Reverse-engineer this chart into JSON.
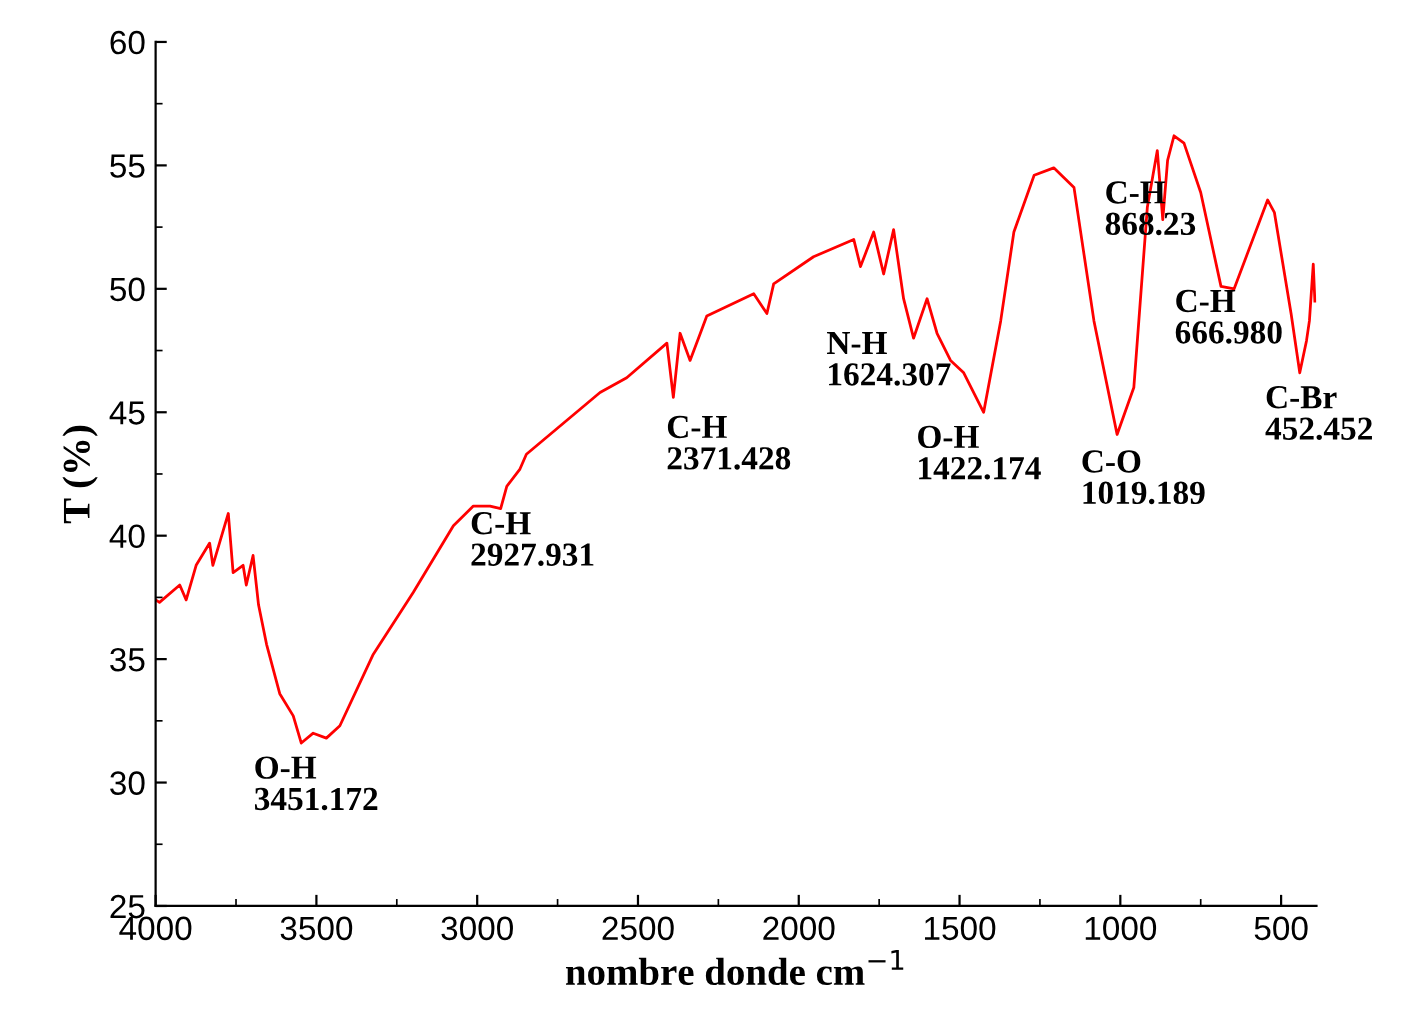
{
  "chart_data": {
    "type": "line",
    "xlabel": "nombre donde cm$^{−1}$",
    "ylabel": "T (%)",
    "xlim": [
      4000,
      390
    ],
    "ylim": [
      25,
      60
    ],
    "xticks": [
      4000,
      3500,
      3000,
      2500,
      2000,
      1500,
      1000,
      500
    ],
    "yticks": [
      25,
      30,
      35,
      40,
      45,
      50,
      55,
      60
    ],
    "grid": false,
    "marker": "none",
    "line_style": "solid",
    "x": [
      4000,
      3988,
      3925,
      3905,
      3874,
      3832,
      3822,
      3774,
      3759,
      3728,
      3718,
      3697,
      3680,
      3655,
      3614,
      3572,
      3547,
      3510,
      3469,
      3427,
      3323,
      3199,
      3074,
      3012,
      2960,
      2927,
      2908,
      2867,
      2847,
      2618,
      2535,
      2410,
      2390,
      2369,
      2338,
      2306,
      2286,
      2140,
      2099,
      2078,
      1954,
      1829,
      1808,
      1767,
      1736,
      1705,
      1674,
      1643,
      1601,
      1570,
      1528,
      1487,
      1425,
      1372,
      1331,
      1268,
      1207,
      1144,
      1082,
      1010,
      958,
      916,
      885,
      868,
      853,
      833,
      802,
      750,
      687,
      646,
      542,
      521,
      469,
      442,
      421,
      412,
      400,
      395
    ],
    "series": [
      {
        "color": "#ff0000",
        "values": [
          37.4,
          37.3,
          38.0,
          37.4,
          38.8,
          39.7,
          38.8,
          40.9,
          38.5,
          38.8,
          38.0,
          39.2,
          37.2,
          35.6,
          33.6,
          32.7,
          31.6,
          32.0,
          31.8,
          32.3,
          35.2,
          37.7,
          40.4,
          41.2,
          41.2,
          41.1,
          42.0,
          42.7,
          43.3,
          45.8,
          46.4,
          47.8,
          45.6,
          48.2,
          47.1,
          48.2,
          48.9,
          49.8,
          49.0,
          50.2,
          51.3,
          52.0,
          50.9,
          52.3,
          50.6,
          52.4,
          49.6,
          48.0,
          49.6,
          48.2,
          47.1,
          46.6,
          45.0,
          48.7,
          52.3,
          54.6,
          54.9,
          54.1,
          48.7,
          44.1,
          46.0,
          53.3,
          55.6,
          52.8,
          55.2,
          56.2,
          55.9,
          53.9,
          50.1,
          50.0,
          53.6,
          53.1,
          49.0,
          46.6,
          47.9,
          48.7,
          51.0,
          49.5
        ]
      }
    ],
    "annotations": [
      "O-H\n3451.172",
      "C-H\n2927.931",
      "C-H\n2371.428",
      "N-H\n1624.307",
      "O-H\n1422.174",
      "C-O\n1019.189",
      "C-H\n868.23",
      "C-H\n666.980",
      "C-Br\n452.452"
    ]
  }
}
